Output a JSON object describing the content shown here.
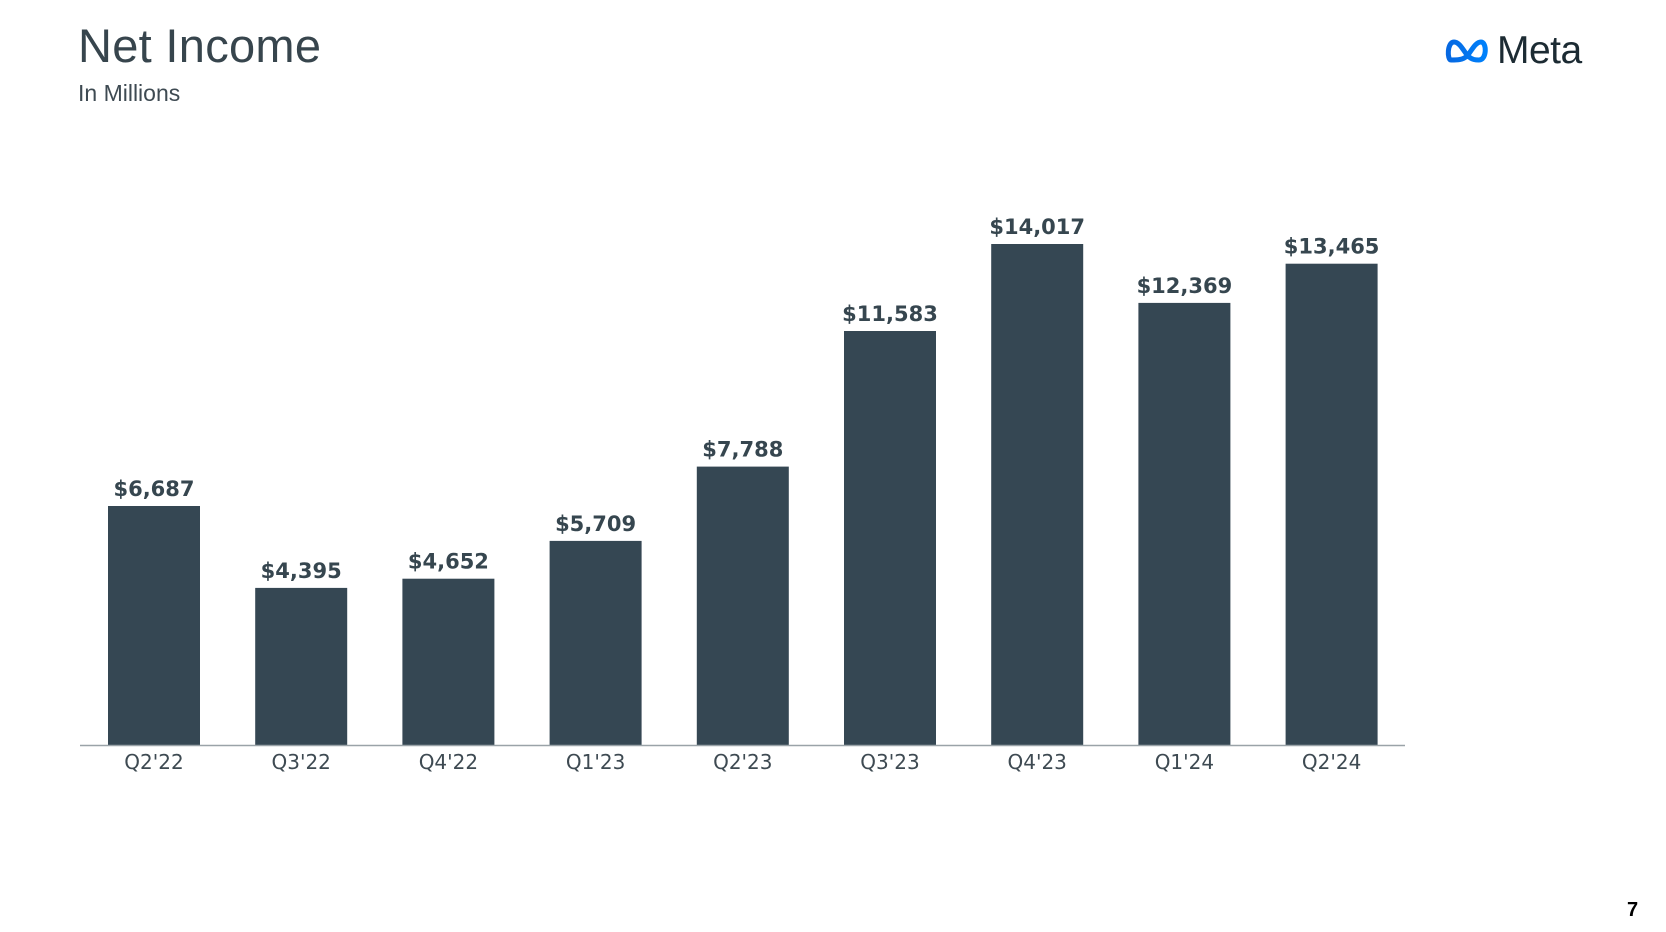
{
  "header": {
    "title": "Net Income",
    "subtitle": "In Millions"
  },
  "logo": {
    "icon": "meta-infinity-icon",
    "text": "Meta",
    "colors": [
      "#0668E1",
      "#0081FB"
    ]
  },
  "footer": {
    "page_number": "7"
  },
  "chart_data": {
    "type": "bar",
    "title": "Net Income",
    "subtitle": "In Millions",
    "categories": [
      "Q2'22",
      "Q3'22",
      "Q4'22",
      "Q1'23",
      "Q2'23",
      "Q3'23",
      "Q4'23",
      "Q1'24",
      "Q2'24"
    ],
    "values": [
      6687,
      4395,
      4652,
      5709,
      7788,
      11583,
      14017,
      12369,
      13465
    ],
    "value_labels": [
      "$6,687",
      "$4,395",
      "$4,652",
      "$5,709",
      "$7,788",
      "$11,583",
      "$14,017",
      "$12,369",
      "$13,465"
    ],
    "ylim": [
      0,
      14017
    ],
    "grid": false,
    "legend": "none",
    "bar_color": "#354753",
    "axis_color": "#9aa3a8"
  }
}
